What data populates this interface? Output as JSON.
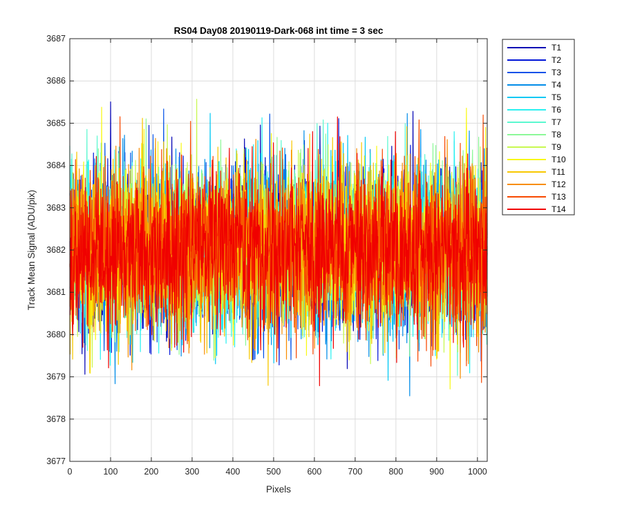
{
  "chart_data": {
    "type": "line",
    "title": "RS04 Day08 20190119-Dark-068 int time = 3 sec",
    "xlabel": "Pixels",
    "ylabel": "Track Mean Signal (ADU/pix)",
    "xlim": [
      0,
      1024
    ],
    "ylim": [
      3677,
      3687
    ],
    "xticks": [
      0,
      100,
      200,
      300,
      400,
      500,
      600,
      700,
      800,
      900,
      1000
    ],
    "yticks": [
      3677,
      3678,
      3679,
      3680,
      3681,
      3682,
      3683,
      3684,
      3685,
      3686,
      3687
    ],
    "grid": true,
    "legend_position": "outside-right",
    "points_per_series": 1024,
    "series": [
      {
        "name": "T1",
        "color": "#0000b4",
        "mean": 3682.0,
        "spread": 0.95
      },
      {
        "name": "T2",
        "color": "#0014d8",
        "mean": 3682.0,
        "spread": 0.95
      },
      {
        "name": "T3",
        "color": "#0050e8",
        "mean": 3682.0,
        "spread": 0.95
      },
      {
        "name": "T4",
        "color": "#008ce8",
        "mean": 3682.0,
        "spread": 0.95
      },
      {
        "name": "T5",
        "color": "#00c8f4",
        "mean": 3682.0,
        "spread": 0.95
      },
      {
        "name": "T6",
        "color": "#2af0f0",
        "mean": 3682.0,
        "spread": 0.95
      },
      {
        "name": "T7",
        "color": "#5af8d0",
        "mean": 3682.0,
        "spread": 0.95
      },
      {
        "name": "T8",
        "color": "#8cf898",
        "mean": 3682.0,
        "spread": 0.95
      },
      {
        "name": "T9",
        "color": "#c8f850",
        "mean": 3682.0,
        "spread": 0.95
      },
      {
        "name": "T10",
        "color": "#f8f814",
        "mean": 3682.0,
        "spread": 0.95
      },
      {
        "name": "T11",
        "color": "#f8c800",
        "mean": 3682.0,
        "spread": 0.95
      },
      {
        "name": "T12",
        "color": "#f88c00",
        "mean": 3682.0,
        "spread": 0.95
      },
      {
        "name": "T13",
        "color": "#f84800",
        "mean": 3682.0,
        "spread": 0.95
      },
      {
        "name": "T14",
        "color": "#f00000",
        "mean": 3682.0,
        "spread": 0.95
      }
    ],
    "extremes": {
      "max": 3686.05,
      "min": 3677.8
    }
  }
}
